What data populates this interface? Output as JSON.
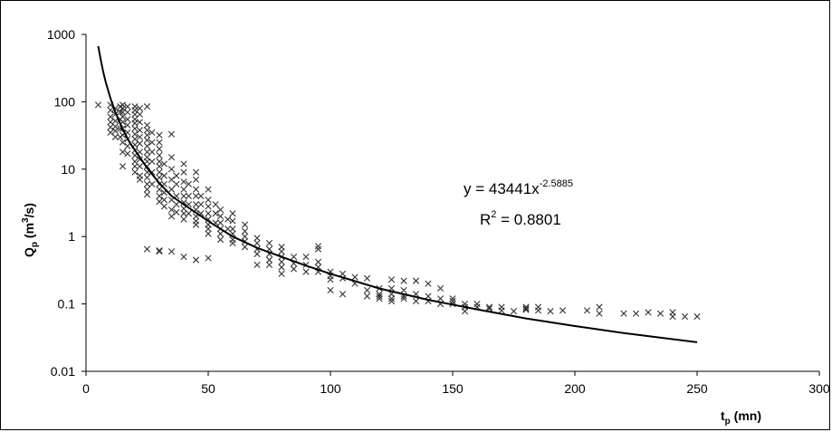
{
  "chart_data": {
    "type": "scatter",
    "title": "",
    "xlabel": {
      "main": "t",
      "sub": "p",
      "rest": " (mn)"
    },
    "ylabel": {
      "main": "Q",
      "sub": "p",
      "rest1": " (m",
      "sup": "3",
      "rest2": "/s)"
    },
    "xlim": [
      0,
      300
    ],
    "ylim": [
      0.01,
      1000
    ],
    "yscale": "log",
    "grid": false,
    "legend": "none",
    "x_ticks": [
      0,
      50,
      100,
      150,
      200,
      250,
      300
    ],
    "x_tick_labels": [
      "0",
      "50",
      "100",
      "150",
      "200",
      "250",
      "300"
    ],
    "y_ticks": [
      0.01,
      0.1,
      1,
      10,
      100,
      1000
    ],
    "y_tick_labels": [
      "0.01",
      "0.1",
      "1",
      "10",
      "100",
      "1000"
    ],
    "marker": "x",
    "marker_color": "#333333",
    "line_color": "#000000",
    "annotation": {
      "eq_prefix": "y = 43441x",
      "eq_exp": "-2.5885",
      "r2_prefix": "R",
      "r2_sup": "2",
      "r2_suffix": " = 0.8801"
    },
    "trendline": {
      "name": "Power fit",
      "formula": "y = 43441 * x^-2.5885",
      "x": [
        5,
        6,
        7,
        8,
        10,
        12,
        15,
        18,
        20,
        25,
        30,
        35,
        40,
        50,
        60,
        70,
        80,
        90,
        100,
        120,
        140,
        160,
        180,
        200,
        220,
        250
      ],
      "y": [
        670,
        425,
        283,
        200,
        113,
        70,
        39,
        24.5,
        19.2,
        10.4,
        6.2,
        4.0,
        3.0,
        1.7,
        1.0,
        0.68,
        0.5,
        0.37,
        0.28,
        0.17,
        0.115,
        0.083,
        0.061,
        0.047,
        0.037,
        0.027
      ]
    },
    "series": [
      {
        "values": [
          [
            5,
            90
          ],
          [
            10,
            90
          ],
          [
            10,
            75
          ],
          [
            10,
            60
          ],
          [
            10,
            50
          ],
          [
            10,
            42
          ],
          [
            10,
            35
          ],
          [
            12,
            80
          ],
          [
            12,
            65
          ],
          [
            12,
            52
          ],
          [
            12,
            43
          ],
          [
            12,
            37
          ],
          [
            12,
            30
          ],
          [
            14,
            85
          ],
          [
            14,
            70
          ],
          [
            14,
            55
          ],
          [
            14,
            40
          ],
          [
            14,
            30
          ],
          [
            15,
            90
          ],
          [
            15,
            80
          ],
          [
            15,
            70
          ],
          [
            15,
            60
          ],
          [
            15,
            50
          ],
          [
            15,
            40
          ],
          [
            15,
            32
          ],
          [
            15,
            25
          ],
          [
            15,
            18
          ],
          [
            15,
            11
          ],
          [
            17,
            85
          ],
          [
            17,
            70
          ],
          [
            17,
            55
          ],
          [
            17,
            45
          ],
          [
            17,
            35
          ],
          [
            17,
            28
          ],
          [
            17,
            22
          ],
          [
            17,
            17
          ],
          [
            20,
            85
          ],
          [
            20,
            75
          ],
          [
            20,
            65
          ],
          [
            20,
            55
          ],
          [
            20,
            48
          ],
          [
            20,
            40
          ],
          [
            20,
            33
          ],
          [
            20,
            28
          ],
          [
            20,
            23
          ],
          [
            20,
            19
          ],
          [
            20,
            16
          ],
          [
            20,
            13
          ],
          [
            20,
            11
          ],
          [
            20,
            9
          ],
          [
            22,
            80
          ],
          [
            22,
            65
          ],
          [
            22,
            50
          ],
          [
            22,
            38
          ],
          [
            22,
            30
          ],
          [
            22,
            24
          ],
          [
            22,
            18
          ],
          [
            22,
            14
          ],
          [
            22,
            11
          ],
          [
            22,
            8
          ],
          [
            22,
            7
          ],
          [
            25,
            85
          ],
          [
            25,
            45
          ],
          [
            25,
            38
          ],
          [
            25,
            32
          ],
          [
            25,
            27
          ],
          [
            25,
            22
          ],
          [
            25,
            18
          ],
          [
            25,
            15
          ],
          [
            25,
            13
          ],
          [
            25,
            11
          ],
          [
            25,
            9
          ],
          [
            25,
            7.5
          ],
          [
            25,
            6
          ],
          [
            25,
            5
          ],
          [
            25,
            4.2
          ],
          [
            25,
            0.65
          ],
          [
            27,
            35
          ],
          [
            27,
            25
          ],
          [
            27,
            18
          ],
          [
            27,
            13
          ],
          [
            27,
            9
          ],
          [
            27,
            6
          ],
          [
            30,
            32
          ],
          [
            30,
            25
          ],
          [
            30,
            20
          ],
          [
            30,
            16
          ],
          [
            30,
            13
          ],
          [
            30,
            11
          ],
          [
            30,
            9
          ],
          [
            30,
            7.5
          ],
          [
            30,
            6
          ],
          [
            30,
            5
          ],
          [
            30,
            4
          ],
          [
            30,
            3.3
          ],
          [
            30,
            0.62
          ],
          [
            30,
            0.6
          ],
          [
            32,
            12
          ],
          [
            32,
            8
          ],
          [
            32,
            6
          ],
          [
            32,
            4.5
          ],
          [
            32,
            3.5
          ],
          [
            32,
            2.8
          ],
          [
            35,
            33
          ],
          [
            35,
            15
          ],
          [
            35,
            10
          ],
          [
            35,
            7
          ],
          [
            35,
            5
          ],
          [
            35,
            3.5
          ],
          [
            35,
            2.5
          ],
          [
            35,
            2
          ],
          [
            35,
            0.6
          ],
          [
            37,
            8
          ],
          [
            37,
            6
          ],
          [
            37,
            4
          ],
          [
            37,
            3
          ],
          [
            37,
            2.3
          ],
          [
            40,
            12
          ],
          [
            40,
            9
          ],
          [
            40,
            6.5
          ],
          [
            40,
            5
          ],
          [
            40,
            4
          ],
          [
            40,
            3.2
          ],
          [
            40,
            2.6
          ],
          [
            40,
            2.2
          ],
          [
            40,
            1.8
          ],
          [
            40,
            0.5
          ],
          [
            42,
            6
          ],
          [
            42,
            4
          ],
          [
            42,
            3
          ],
          [
            42,
            2.2
          ],
          [
            45,
            9
          ],
          [
            45,
            7
          ],
          [
            45,
            5
          ],
          [
            45,
            4
          ],
          [
            45,
            3
          ],
          [
            45,
            2.5
          ],
          [
            45,
            2
          ],
          [
            45,
            1.7
          ],
          [
            45,
            1.5
          ],
          [
            45,
            0.45
          ],
          [
            47,
            4
          ],
          [
            47,
            3
          ],
          [
            47,
            2.2
          ],
          [
            50,
            5
          ],
          [
            50,
            3.5
          ],
          [
            50,
            2.8
          ],
          [
            50,
            2.2
          ],
          [
            50,
            1.8
          ],
          [
            50,
            1.5
          ],
          [
            50,
            1.3
          ],
          [
            50,
            1.1
          ],
          [
            50,
            0.48
          ],
          [
            53,
            3
          ],
          [
            53,
            2.2
          ],
          [
            53,
            1.6
          ],
          [
            55,
            2.5
          ],
          [
            55,
            2
          ],
          [
            55,
            1.6
          ],
          [
            55,
            1.3
          ],
          [
            55,
            1.1
          ],
          [
            55,
            0.9
          ],
          [
            58,
            1.8
          ],
          [
            58,
            1.3
          ],
          [
            60,
            2.2
          ],
          [
            60,
            1.7
          ],
          [
            60,
            1.3
          ],
          [
            60,
            1.1
          ],
          [
            60,
            0.9
          ],
          [
            60,
            0.8
          ],
          [
            65,
            1.5
          ],
          [
            65,
            1.2
          ],
          [
            65,
            1
          ],
          [
            65,
            0.85
          ],
          [
            65,
            0.7
          ],
          [
            70,
            0.95
          ],
          [
            70,
            0.8
          ],
          [
            70,
            0.65
          ],
          [
            70,
            0.55
          ],
          [
            70,
            0.38
          ],
          [
            75,
            0.8
          ],
          [
            75,
            0.65
          ],
          [
            75,
            0.55
          ],
          [
            75,
            0.45
          ],
          [
            75,
            0.38
          ],
          [
            80,
            0.7
          ],
          [
            80,
            0.6
          ],
          [
            80,
            0.5
          ],
          [
            80,
            0.42
          ],
          [
            80,
            0.35
          ],
          [
            80,
            0.28
          ],
          [
            85,
            0.5
          ],
          [
            85,
            0.4
          ],
          [
            85,
            0.33
          ],
          [
            90,
            0.5
          ],
          [
            90,
            0.38
          ],
          [
            90,
            0.3
          ],
          [
            95,
            0.72
          ],
          [
            95,
            0.65
          ],
          [
            95,
            0.42
          ],
          [
            95,
            0.35
          ],
          [
            95,
            0.3
          ],
          [
            100,
            0.3
          ],
          [
            100,
            0.26
          ],
          [
            100,
            0.23
          ],
          [
            100,
            0.16
          ],
          [
            105,
            0.28
          ],
          [
            105,
            0.24
          ],
          [
            105,
            0.14
          ],
          [
            110,
            0.25
          ],
          [
            110,
            0.2
          ],
          [
            115,
            0.24
          ],
          [
            115,
            0.16
          ],
          [
            115,
            0.13
          ],
          [
            120,
            0.17
          ],
          [
            120,
            0.14
          ],
          [
            120,
            0.13
          ],
          [
            120,
            0.12
          ],
          [
            125,
            0.23
          ],
          [
            125,
            0.17
          ],
          [
            125,
            0.14
          ],
          [
            125,
            0.12
          ],
          [
            125,
            0.11
          ],
          [
            130,
            0.22
          ],
          [
            130,
            0.16
          ],
          [
            130,
            0.13
          ],
          [
            130,
            0.12
          ],
          [
            135,
            0.22
          ],
          [
            135,
            0.14
          ],
          [
            135,
            0.11
          ],
          [
            140,
            0.2
          ],
          [
            140,
            0.13
          ],
          [
            140,
            0.11
          ],
          [
            145,
            0.17
          ],
          [
            145,
            0.12
          ],
          [
            145,
            0.1
          ],
          [
            150,
            0.12
          ],
          [
            150,
            0.11
          ],
          [
            150,
            0.1
          ],
          [
            155,
            0.1
          ],
          [
            155,
            0.09
          ],
          [
            155,
            0.078
          ],
          [
            160,
            0.1
          ],
          [
            160,
            0.09
          ],
          [
            165,
            0.09
          ],
          [
            165,
            0.085
          ],
          [
            170,
            0.09
          ],
          [
            170,
            0.08
          ],
          [
            175,
            0.078
          ],
          [
            180,
            0.09
          ],
          [
            180,
            0.085
          ],
          [
            180,
            0.082
          ],
          [
            185,
            0.09
          ],
          [
            185,
            0.08
          ],
          [
            190,
            0.078
          ],
          [
            195,
            0.08
          ],
          [
            205,
            0.08
          ],
          [
            210,
            0.09
          ],
          [
            210,
            0.072
          ],
          [
            220,
            0.072
          ],
          [
            225,
            0.072
          ],
          [
            230,
            0.075
          ],
          [
            235,
            0.072
          ],
          [
            240,
            0.075
          ],
          [
            240,
            0.065
          ],
          [
            245,
            0.065
          ],
          [
            250,
            0.065
          ]
        ]
      }
    ]
  }
}
